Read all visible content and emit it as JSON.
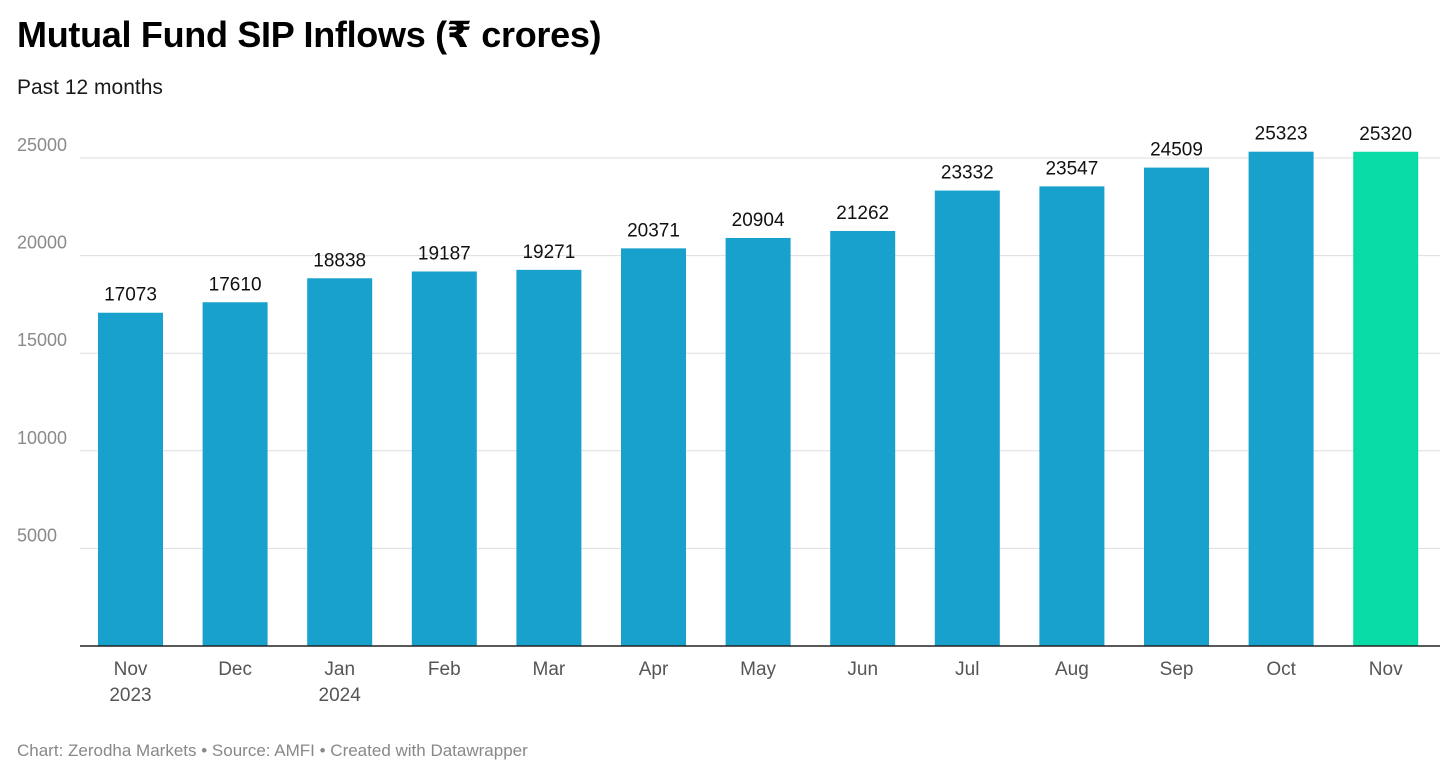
{
  "chart_data": {
    "type": "bar",
    "title": "Mutual Fund SIP Inflows (₹ crores)",
    "subtitle": "Past 12 months",
    "footer": "Chart: Zerodha Markets • Source: AMFI • Created with Datawrapper",
    "categories": [
      [
        "Nov",
        "2023"
      ],
      [
        "Dec"
      ],
      [
        "Jan",
        "2024"
      ],
      [
        "Feb"
      ],
      [
        "Mar"
      ],
      [
        "Apr"
      ],
      [
        "May"
      ],
      [
        "Jun"
      ],
      [
        "Jul"
      ],
      [
        "Aug"
      ],
      [
        "Sep"
      ],
      [
        "Oct"
      ],
      [
        "Nov"
      ]
    ],
    "values": [
      17073,
      17610,
      18838,
      19187,
      19271,
      20371,
      20904,
      21262,
      23332,
      23547,
      24509,
      25323,
      25320
    ],
    "ylim": [
      0,
      25000
    ],
    "yticks": [
      5000,
      10000,
      15000,
      20000,
      25000
    ],
    "grid": true,
    "colors": {
      "bar": "#18a1cd",
      "highlight": "#09dba7",
      "highlight_index": 12
    }
  }
}
